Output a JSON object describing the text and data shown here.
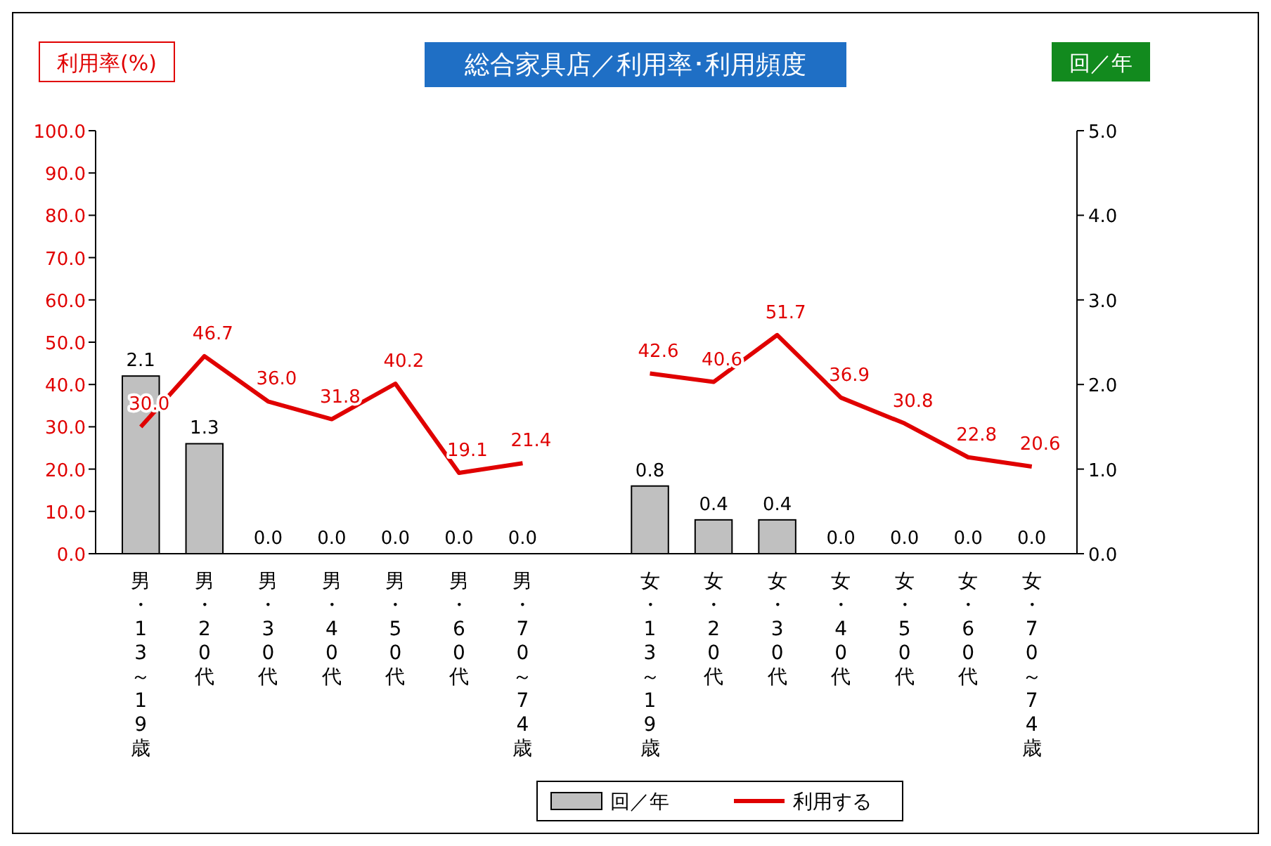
{
  "chart_data": {
    "type": "bar",
    "title": "総合家具店／利用率･利用頻度",
    "ylabel": "利用率(%)",
    "y2label": "回／年",
    "categories": [
      "男・13～19歳",
      "男・20代",
      "男・30代",
      "男・40代",
      "男・50代",
      "男・60代",
      "男・70～74歳",
      null,
      "女・13～19歳",
      "女・20代",
      "女・30代",
      "女・40代",
      "女・50代",
      "女・60代",
      "女・70～74歳"
    ],
    "series": [
      {
        "name": "回／年",
        "axis": "y2",
        "color": "#c0c0c0",
        "values": [
          2.1,
          1.3,
          0,
          0,
          0,
          0,
          0,
          null,
          0.8,
          0.4,
          0.4,
          0,
          0,
          0,
          0
        ],
        "value_labels": [
          "2.1",
          "1.3",
          "0.0",
          "0.0",
          "0.0",
          "0.0",
          "0.0",
          null,
          "0.8",
          "0.4",
          "0.4",
          "0.0",
          "0.0",
          "0.0",
          "0.0"
        ]
      },
      {
        "name": "利用する",
        "type": "line",
        "color": "#e00000",
        "values": [
          30,
          46.7,
          36,
          31.8,
          40.2,
          19.1,
          21.4,
          null,
          42.6,
          40.6,
          51.7,
          36.9,
          30.8,
          22.8,
          20.6
        ],
        "value_labels": [
          "30.0",
          "46.7",
          "36.0",
          "31.8",
          "40.2",
          "19.1",
          "21.4",
          null,
          "42.6",
          "40.6",
          "51.7",
          "36.9",
          "30.8",
          "22.8",
          "20.6"
        ]
      }
    ],
    "ylim": [
      0,
      100
    ],
    "yticks": [
      {
        "value": 0,
        "label": "0.0"
      },
      {
        "value": 10,
        "label": "10.0"
      },
      {
        "value": 20,
        "label": "20.0"
      },
      {
        "value": 30,
        "label": "30.0"
      },
      {
        "value": 40,
        "label": "40.0"
      },
      {
        "value": 50,
        "label": "50.0"
      },
      {
        "value": 60,
        "label": "60.0"
      },
      {
        "value": 70,
        "label": "70.0"
      },
      {
        "value": 80,
        "label": "80.0"
      },
      {
        "value": 90,
        "label": "90.0"
      },
      {
        "value": 100,
        "label": "100.0"
      }
    ],
    "y2lim": [
      0,
      5
    ],
    "y2ticks": [
      {
        "value": 0,
        "label": "0.0"
      },
      {
        "value": 1,
        "label": "1.0"
      },
      {
        "value": 2,
        "label": "2.0"
      },
      {
        "value": 3,
        "label": "3.0"
      },
      {
        "value": 4,
        "label": "4.0"
      },
      {
        "value": 5,
        "label": "5.0"
      }
    ],
    "legend": "bottom",
    "grid": false,
    "marker": "none"
  }
}
